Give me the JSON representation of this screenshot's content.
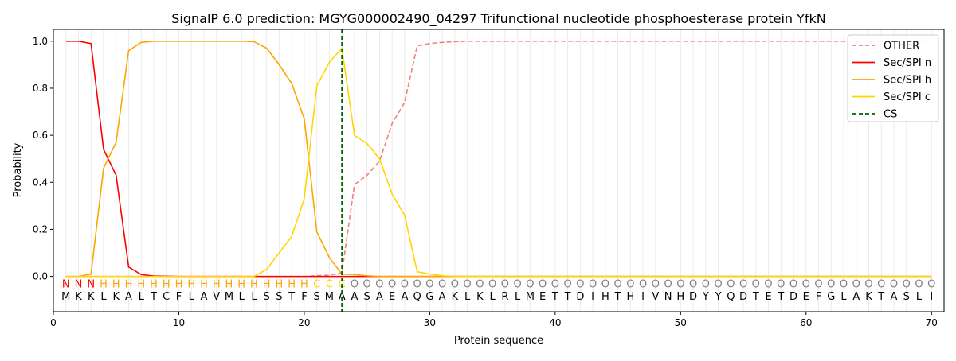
{
  "chart_data": {
    "type": "line",
    "title": "SignalP 6.0 prediction: MGYG000002490_04297 Trifunctional nucleotide phosphoesterase protein YfkN",
    "xlabel": "Protein sequence",
    "ylabel": "Probability",
    "xlim": [
      0,
      71
    ],
    "ylim": [
      -0.15,
      1.05
    ],
    "xticks": [
      0,
      10,
      20,
      30,
      40,
      50,
      60,
      70
    ],
    "yticks": [
      "0.0",
      "0.2",
      "0.4",
      "0.6",
      "0.8",
      "1.0"
    ],
    "grid": "vertical lines at each residue",
    "legend_placement": "top-right",
    "sequence": "MKKLKALTCFLAVMLLSSTFSMAASAEAQGAKLKLRLMETTDIHTHIVNHDYYQDTETDEFGLAKTASLI",
    "labels": "NNNHHHHHHHHHHHHHHHHHCCCOOOOOOOOOOOOOOOOOOOOOOOOOOOOOOOOOOOOOOOOOOOOOOO",
    "label_colors": {
      "N": "#ff0000",
      "H": "#ffa500",
      "C": "#ffd700",
      "O": "#808080"
    },
    "cleavage_site": 23,
    "series": [
      {
        "name": "OTHER",
        "color": "#f08080",
        "dash": true,
        "values": [
          0,
          0,
          0,
          0,
          0,
          0,
          0,
          0,
          0,
          0,
          0,
          0,
          0,
          0,
          0,
          0,
          0,
          0,
          0,
          0,
          0.003,
          0.005,
          0.015,
          0.39,
          0.43,
          0.49,
          0.65,
          0.74,
          0.98,
          0.99,
          0.995,
          0.998,
          1,
          1,
          1,
          1,
          1,
          1,
          1,
          1,
          1,
          1,
          1,
          1,
          1,
          1,
          1,
          1,
          1,
          1,
          1,
          1,
          1,
          1,
          1,
          1,
          1,
          1,
          1,
          1,
          1,
          1,
          1,
          1,
          1,
          1,
          1,
          1,
          1,
          1
        ]
      },
      {
        "name": "Sec/SPI n",
        "color": "#ff0000",
        "values": [
          1.0,
          1.0,
          0.99,
          0.54,
          0.43,
          0.04,
          0.008,
          0.002,
          0.001,
          0,
          0,
          0,
          0,
          0,
          0,
          0,
          0,
          0,
          0,
          0,
          0,
          0,
          0,
          0,
          0,
          0,
          0,
          0,
          0,
          0,
          0,
          0,
          0,
          0,
          0,
          0,
          0,
          0,
          0,
          0,
          0,
          0,
          0,
          0,
          0,
          0,
          0,
          0,
          0,
          0,
          0,
          0,
          0,
          0,
          0,
          0,
          0,
          0,
          0,
          0,
          0,
          0,
          0,
          0,
          0,
          0,
          0,
          0,
          0,
          0
        ]
      },
      {
        "name": "Sec/SPI h",
        "color": "#ffa500",
        "values": [
          0,
          0,
          0.01,
          0.46,
          0.57,
          0.96,
          0.995,
          1.0,
          1.0,
          1.0,
          1.0,
          1.0,
          1.0,
          1.0,
          1.0,
          0.998,
          0.97,
          0.9,
          0.82,
          0.67,
          0.19,
          0.08,
          0.01,
          0.008,
          0.003,
          0,
          0,
          0,
          0,
          0,
          0,
          0,
          0,
          0,
          0,
          0,
          0,
          0,
          0,
          0,
          0,
          0,
          0,
          0,
          0,
          0,
          0,
          0,
          0,
          0,
          0,
          0,
          0,
          0,
          0,
          0,
          0,
          0,
          0,
          0,
          0,
          0,
          0,
          0,
          0,
          0,
          0,
          0,
          0,
          0
        ]
      },
      {
        "name": "Sec/SPI c",
        "color": "#ffd700",
        "values": [
          0,
          0,
          0,
          0,
          0,
          0,
          0,
          0,
          0,
          0,
          0,
          0,
          0,
          0,
          0,
          0,
          0.03,
          0.1,
          0.17,
          0.33,
          0.81,
          0.91,
          0.97,
          0.6,
          0.565,
          0.5,
          0.35,
          0.26,
          0.02,
          0.01,
          0.003,
          0,
          0,
          0,
          0,
          0,
          0,
          0,
          0,
          0,
          0,
          0,
          0,
          0,
          0,
          0,
          0,
          0,
          0,
          0,
          0,
          0,
          0,
          0,
          0,
          0,
          0,
          0,
          0,
          0,
          0,
          0,
          0,
          0,
          0,
          0,
          0,
          0,
          0,
          0
        ]
      }
    ],
    "legend": [
      "OTHER",
      "Sec/SPI n",
      "Sec/SPI h",
      "Sec/SPI c",
      "CS"
    ],
    "cs_color": "#006400"
  }
}
